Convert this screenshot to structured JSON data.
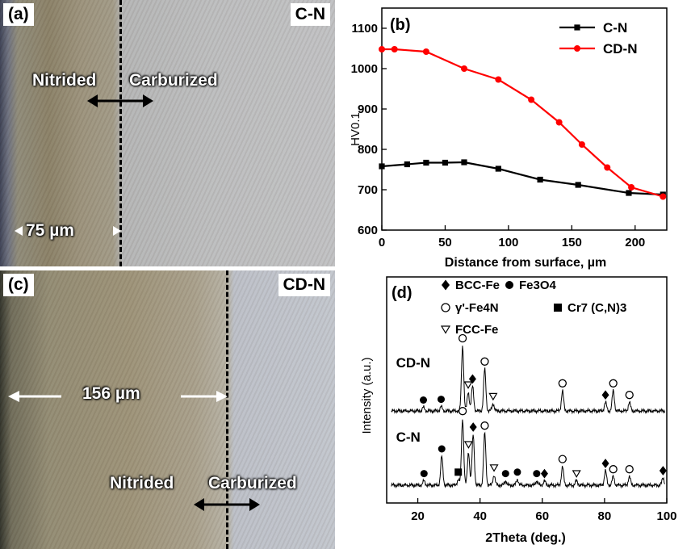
{
  "panel_a": {
    "label": "(a)",
    "tag": "C-N",
    "left_text": "Nitrided",
    "right_text": "Carburized",
    "thickness": "75 µm"
  },
  "panel_c": {
    "label": "(c)",
    "tag": "CD-N",
    "left_text": "Nitrided",
    "right_text": "Carburized",
    "thickness": "156 µm"
  },
  "chart_data": [
    {
      "panel": "(b)",
      "type": "line",
      "xlabel": "Distance from surface, µm",
      "ylabel": "HV0.1",
      "xlim": [
        0,
        225
      ],
      "ylim": [
        600,
        1150
      ],
      "xticks": [
        0,
        50,
        100,
        150,
        200
      ],
      "yticks": [
        600,
        700,
        800,
        900,
        1000,
        1100
      ],
      "legend": "top-right",
      "series": [
        {
          "name": "C-N",
          "color": "#000000",
          "marker": "square",
          "x": [
            0,
            20,
            35,
            50,
            65,
            92,
            125,
            155,
            195,
            222
          ],
          "y": [
            758,
            763,
            767,
            767,
            768,
            752,
            725,
            712,
            692,
            688
          ]
        },
        {
          "name": "CD-N",
          "color": "#ff0000",
          "marker": "circle",
          "x": [
            0,
            10,
            35,
            65,
            92,
            118,
            140,
            158,
            178,
            197,
            222
          ],
          "y": [
            1048,
            1048,
            1042,
            1000,
            973,
            923,
            867,
            812,
            755,
            706,
            683
          ]
        }
      ]
    },
    {
      "panel": "(d)",
      "type": "line",
      "xlabel": "2Theta (deg.)",
      "ylabel": "Intensity (a.u.)",
      "xlim": [
        10,
        100
      ],
      "xticks": [
        20,
        40,
        60,
        80,
        100
      ],
      "legend": "top",
      "legend_entries": [
        {
          "symbol": "diamond",
          "label": "BCC-Fe"
        },
        {
          "symbol": "dot",
          "label": "Fe3O4"
        },
        {
          "symbol": "circle",
          "label": "γ'-Fe4N"
        },
        {
          "symbol": "square",
          "label": "Cr7 (C,N)3"
        },
        {
          "symbol": "triangle",
          "label": "FCC-Fe"
        }
      ],
      "series": [
        {
          "name": "CD-N",
          "peaks": [
            {
              "x": 21.8,
              "h": 0.05,
              "symbol": "dot"
            },
            {
              "x": 27.5,
              "h": 0.06,
              "symbol": "dot"
            },
            {
              "x": 34.4,
              "h": 0.9,
              "symbol": "circle"
            },
            {
              "x": 36.2,
              "h": 0.26,
              "symbol": "triangle"
            },
            {
              "x": 37.6,
              "h": 0.34,
              "symbol": "diamond"
            },
            {
              "x": 41.5,
              "h": 0.58,
              "symbol": "circle"
            },
            {
              "x": 44.2,
              "h": 0.1,
              "symbol": "triangle"
            },
            {
              "x": 66.5,
              "h": 0.28,
              "symbol": "circle"
            },
            {
              "x": 80.3,
              "h": 0.12,
              "symbol": "diamond"
            },
            {
              "x": 82.8,
              "h": 0.28,
              "symbol": "circle"
            },
            {
              "x": 88.0,
              "h": 0.12,
              "symbol": "circle"
            }
          ]
        },
        {
          "name": "C-N",
          "peaks": [
            {
              "x": 22.0,
              "h": 0.06,
              "symbol": "dot"
            },
            {
              "x": 27.7,
              "h": 0.4,
              "symbol": "dot"
            },
            {
              "x": 33.0,
              "h": 0.08,
              "symbol": "square"
            },
            {
              "x": 34.4,
              "h": 0.92,
              "symbol": "circle"
            },
            {
              "x": 36.3,
              "h": 0.46,
              "symbol": "triangle"
            },
            {
              "x": 37.8,
              "h": 0.7,
              "symbol": "diamond"
            },
            {
              "x": 41.5,
              "h": 0.72,
              "symbol": "circle"
            },
            {
              "x": 44.5,
              "h": 0.14,
              "symbol": "triangle"
            },
            {
              "x": 48.2,
              "h": 0.06,
              "symbol": "dot"
            },
            {
              "x": 52.0,
              "h": 0.08,
              "symbol": "dot"
            },
            {
              "x": 58.2,
              "h": 0.06,
              "symbol": "dot"
            },
            {
              "x": 60.7,
              "h": 0.06,
              "symbol": "diamond"
            },
            {
              "x": 66.5,
              "h": 0.26,
              "symbol": "circle"
            },
            {
              "x": 71.0,
              "h": 0.06,
              "symbol": "triangle"
            },
            {
              "x": 80.3,
              "h": 0.2,
              "symbol": "diamond"
            },
            {
              "x": 82.8,
              "h": 0.12,
              "symbol": "circle"
            },
            {
              "x": 88.0,
              "h": 0.12,
              "symbol": "circle"
            },
            {
              "x": 98.8,
              "h": 0.1,
              "symbol": "diamond"
            }
          ]
        }
      ]
    }
  ]
}
